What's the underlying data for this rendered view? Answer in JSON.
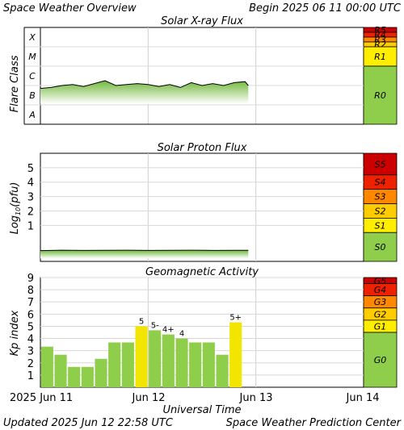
{
  "header": {
    "title": "Space Weather Overview",
    "begin": "Begin 2025 06 11 00:00 UTC"
  },
  "footer": {
    "updated": "Updated 2025 Jun 12 22:58 UTC",
    "center": "Space Weather Prediction Center"
  },
  "x_axis": {
    "label": "Universal Time",
    "ticks": [
      "2025 Jun 11",
      "Jun 12",
      "Jun 13",
      "Jun 14"
    ]
  },
  "colors": {
    "extreme": "#cc0000",
    "severe": "#ee2200",
    "strong": "#ff8800",
    "moderate": "#ffcc00",
    "minor": "#ffee00",
    "quiet": "#8fce4a",
    "flux_fill": "#7bc242",
    "kp_normal": "#8fce4a",
    "kp_storm": "#f2e600"
  },
  "chart_data": [
    {
      "type": "area",
      "title": "Solar X-ray Flux",
      "ylabel": "Flare Class",
      "y_ticks": [
        "A",
        "B",
        "C",
        "M",
        "X"
      ],
      "ylim": [
        0,
        5
      ],
      "xlim": [
        0,
        3
      ],
      "x": [
        0.0,
        0.1,
        0.2,
        0.3,
        0.4,
        0.5,
        0.6,
        0.7,
        0.8,
        0.9,
        1.0,
        1.1,
        1.2,
        1.3,
        1.4,
        1.5,
        1.6,
        1.7,
        1.8,
        1.9,
        1.93
      ],
      "y": [
        1.85,
        1.9,
        2.0,
        2.05,
        1.95,
        2.1,
        2.25,
        2.0,
        2.05,
        2.1,
        2.05,
        1.95,
        2.05,
        1.9,
        2.15,
        2.0,
        2.1,
        2.0,
        2.15,
        2.2,
        2.0
      ],
      "scales": [
        {
          "label": "R5",
          "color": "#cc0000"
        },
        {
          "label": "R4",
          "color": "#ee2200"
        },
        {
          "label": "R3",
          "color": "#ff8800"
        },
        {
          "label": "R2",
          "color": "#ffcc00"
        },
        {
          "label": "R1",
          "color": "#ffee00"
        },
        {
          "label": "R0",
          "color": "#8fce4a"
        }
      ]
    },
    {
      "type": "area",
      "title": "Solar Proton Flux",
      "ylabel": "Log10(pfu)",
      "ylabel_main": "Log",
      "ylabel_sub": "10",
      "ylabel_tail": "(pfu)",
      "y_ticks": [
        "1",
        "2",
        "3",
        "4",
        "5"
      ],
      "ylim": [
        -1.5,
        6
      ],
      "xlim": [
        0,
        3
      ],
      "x": [
        0.0,
        0.2,
        0.4,
        0.6,
        0.8,
        1.0,
        1.2,
        1.4,
        1.6,
        1.8,
        1.93
      ],
      "y": [
        -0.75,
        -0.72,
        -0.74,
        -0.73,
        -0.72,
        -0.74,
        -0.73,
        -0.72,
        -0.74,
        -0.73,
        -0.73
      ],
      "scales": [
        {
          "label": "S5",
          "color": "#cc0000"
        },
        {
          "label": "S4",
          "color": "#ee2200"
        },
        {
          "label": "S3",
          "color": "#ff8800"
        },
        {
          "label": "S2",
          "color": "#ffcc00"
        },
        {
          "label": "S1",
          "color": "#ffee00"
        },
        {
          "label": "S0",
          "color": "#8fce4a"
        }
      ]
    },
    {
      "type": "bar",
      "title": "Geomagnetic Activity",
      "ylabel": "Kp index",
      "y_ticks": [
        "1",
        "2",
        "3",
        "4",
        "5",
        "6",
        "7",
        "8",
        "9"
      ],
      "ylim": [
        0,
        9
      ],
      "xlim": [
        0,
        3
      ],
      "bar_width_days": 0.125,
      "values": [
        3.33,
        2.67,
        1.67,
        1.67,
        2.33,
        3.67,
        3.67,
        5.0,
        4.67,
        4.33,
        4.0,
        3.67,
        3.67,
        2.67,
        5.33
      ],
      "labels": [
        "",
        "",
        "",
        "",
        "",
        "",
        "",
        "5",
        "5-",
        "4+",
        "4",
        "",
        "",
        "",
        "5+"
      ],
      "scales": [
        {
          "label": "G5",
          "color": "#cc0000"
        },
        {
          "label": "G4",
          "color": "#ee2200"
        },
        {
          "label": "G3",
          "color": "#ff8800"
        },
        {
          "label": "G2",
          "color": "#ffcc00"
        },
        {
          "label": "G1",
          "color": "#ffee00"
        },
        {
          "label": "G0",
          "color": "#8fce4a"
        }
      ]
    }
  ]
}
